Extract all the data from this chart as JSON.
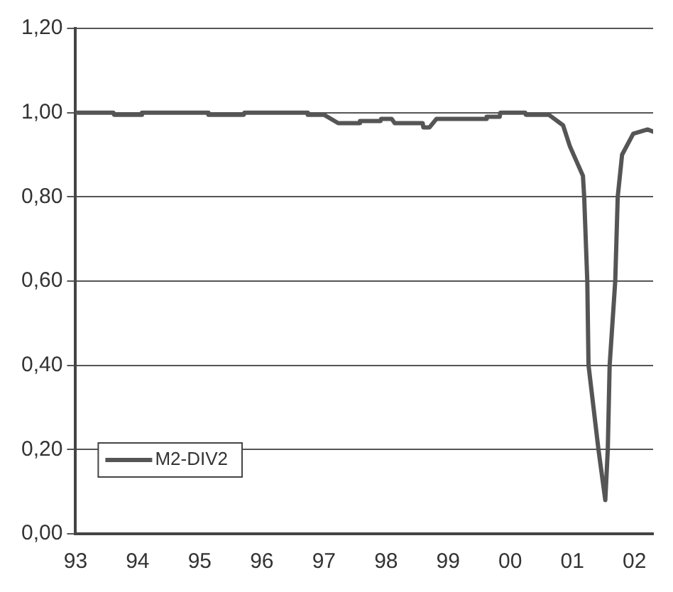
{
  "chart_data": {
    "type": "line",
    "xlim": [
      1993,
      2002.3
    ],
    "xticks": [
      {
        "value": 1993,
        "label": "93"
      },
      {
        "value": 1994,
        "label": "94"
      },
      {
        "value": 1995,
        "label": "95"
      },
      {
        "value": 1996,
        "label": "96"
      },
      {
        "value": 1997,
        "label": "97"
      },
      {
        "value": 1998,
        "label": "98"
      },
      {
        "value": 1999,
        "label": "99"
      },
      {
        "value": 2000,
        "label": "00"
      },
      {
        "value": 2001,
        "label": "01"
      },
      {
        "value": 2002,
        "label": "02"
      }
    ],
    "ylim": [
      0,
      1.2
    ],
    "yticks": [
      {
        "value": 0,
        "label": "0,00"
      },
      {
        "value": 0.2,
        "label": "0,20"
      },
      {
        "value": 0.4,
        "label": "0,40"
      },
      {
        "value": 0.6,
        "label": "0,60"
      },
      {
        "value": 0.8,
        "label": "0,80"
      },
      {
        "value": 1,
        "label": "1,00"
      },
      {
        "value": 1.2,
        "label": "1,20"
      }
    ],
    "grid": "y",
    "legend": "bottom left",
    "marker": "none",
    "line_style": "solid",
    "series": [
      {
        "name": "M2-DIV2",
        "color": "#555555",
        "x": [
          1993,
          1993.61,
          1993.62,
          1994.06,
          1994.07,
          1995.13,
          1995.14,
          1995.71,
          1995.72,
          1996.73,
          1996.74,
          1997.0,
          1997.23,
          1997.57,
          1997.58,
          1997.91,
          1997.92,
          1998.09,
          1998.14,
          1998.59,
          1998.6,
          1998.7,
          1998.81,
          1999.61,
          1999.62,
          1999.83,
          1999.84,
          2000.24,
          2000.25,
          2000.62,
          2000.85,
          2000.96,
          2001.08,
          2001.17,
          2001.19,
          2001.24,
          2001.26,
          2001.42,
          2001.53,
          2001.57,
          2001.6,
          2001.69,
          2001.73,
          2001.8,
          2001.98,
          2002.21,
          2002.3
        ],
        "values": [
          1.0,
          1.0,
          0.995,
          0.995,
          1.0,
          1.0,
          0.995,
          0.995,
          1.0,
          1.0,
          0.995,
          0.995,
          0.975,
          0.975,
          0.98,
          0.98,
          0.985,
          0.985,
          0.975,
          0.975,
          0.965,
          0.965,
          0.985,
          0.985,
          0.99,
          0.99,
          1.0,
          1.0,
          0.995,
          0.995,
          0.97,
          0.92,
          0.88,
          0.85,
          0.8,
          0.6,
          0.4,
          0.2,
          0.08,
          0.2,
          0.4,
          0.6,
          0.8,
          0.9,
          0.95,
          0.96,
          0.955
        ]
      }
    ]
  }
}
